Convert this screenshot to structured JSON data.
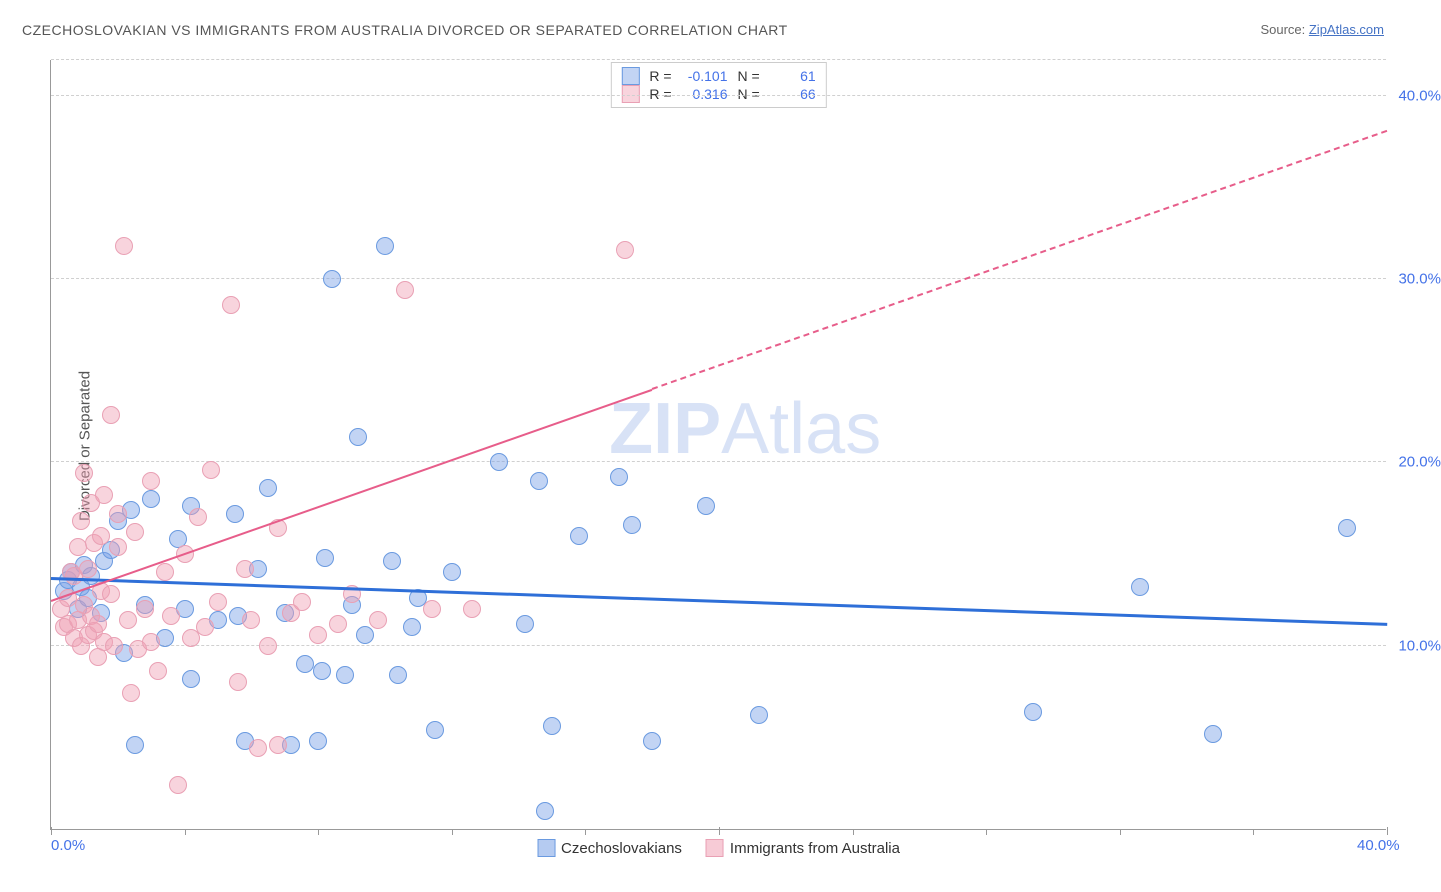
{
  "title": "CZECHOSLOVAKIAN VS IMMIGRANTS FROM AUSTRALIA DIVORCED OR SEPARATED CORRELATION CHART",
  "source_prefix": "Source: ",
  "source_link": "ZipAtlas.com",
  "ylabel": "Divorced or Separated",
  "watermark_a": "ZIP",
  "watermark_b": "Atlas",
  "chart": {
    "type": "scatter",
    "xlim": [
      0,
      40
    ],
    "ylim": [
      0,
      42
    ],
    "x_ticks": [
      0,
      20,
      40
    ],
    "x_tick_labels": [
      "0.0%",
      "",
      "40.0%"
    ],
    "x_minor_ticks": [
      4,
      8,
      12,
      16,
      24,
      28,
      32,
      36
    ],
    "y_grid": [
      10,
      20,
      30,
      40
    ],
    "y_grid_labels": [
      "10.0%",
      "20.0%",
      "30.0%",
      "40.0%"
    ],
    "background_color": "#ffffff",
    "grid_color": "#d0d0d0",
    "axis_color": "#999999",
    "tick_label_color": "#4472e8",
    "label_fontsize": 15,
    "title_fontsize": 14,
    "title_color": "#555555",
    "series": [
      {
        "name": "Czechoslovakians",
        "fill": "rgba(120,160,230,0.45)",
        "stroke": "#6a9ae0",
        "marker_radius": 9,
        "R": "-0.101",
        "N": "61",
        "trend": {
          "x1": 0,
          "y1": 13.6,
          "x2": 40,
          "y2": 11.1,
          "color": "#2e6fd8",
          "width": 3,
          "dash_after": null
        },
        "points": [
          [
            0.4,
            13.0
          ],
          [
            0.5,
            13.6
          ],
          [
            0.6,
            14.0
          ],
          [
            0.8,
            12.0
          ],
          [
            0.9,
            13.2
          ],
          [
            1.0,
            14.4
          ],
          [
            1.1,
            12.6
          ],
          [
            1.2,
            13.8
          ],
          [
            1.5,
            11.8
          ],
          [
            1.6,
            14.6
          ],
          [
            1.8,
            15.2
          ],
          [
            2.0,
            16.8
          ],
          [
            2.2,
            9.6
          ],
          [
            2.4,
            17.4
          ],
          [
            2.5,
            4.6
          ],
          [
            2.8,
            12.2
          ],
          [
            3.0,
            18.0
          ],
          [
            3.4,
            10.4
          ],
          [
            3.8,
            15.8
          ],
          [
            4.0,
            12.0
          ],
          [
            4.2,
            17.6
          ],
          [
            4.2,
            8.2
          ],
          [
            5.0,
            11.4
          ],
          [
            5.5,
            17.2
          ],
          [
            5.6,
            11.6
          ],
          [
            5.8,
            4.8
          ],
          [
            6.2,
            14.2
          ],
          [
            6.5,
            18.6
          ],
          [
            7.0,
            11.8
          ],
          [
            7.2,
            4.6
          ],
          [
            7.6,
            9.0
          ],
          [
            8.0,
            4.8
          ],
          [
            8.1,
            8.6
          ],
          [
            8.2,
            14.8
          ],
          [
            8.4,
            30.0
          ],
          [
            8.8,
            8.4
          ],
          [
            9.0,
            12.2
          ],
          [
            9.2,
            21.4
          ],
          [
            9.4,
            10.6
          ],
          [
            10.0,
            31.8
          ],
          [
            10.2,
            14.6
          ],
          [
            10.4,
            8.4
          ],
          [
            10.8,
            11.0
          ],
          [
            11.0,
            12.6
          ],
          [
            11.5,
            5.4
          ],
          [
            12.0,
            14.0
          ],
          [
            13.4,
            20.0
          ],
          [
            14.2,
            11.2
          ],
          [
            14.6,
            19.0
          ],
          [
            14.8,
            1.0
          ],
          [
            15.0,
            5.6
          ],
          [
            15.8,
            16.0
          ],
          [
            17.0,
            19.2
          ],
          [
            17.4,
            16.6
          ],
          [
            18.0,
            4.8
          ],
          [
            19.6,
            17.6
          ],
          [
            21.2,
            6.2
          ],
          [
            29.4,
            6.4
          ],
          [
            32.6,
            13.2
          ],
          [
            34.8,
            5.2
          ],
          [
            38.8,
            16.4
          ]
        ]
      },
      {
        "name": "Immigrants from Australia",
        "fill": "rgba(240,160,180,0.45)",
        "stroke": "#e9a0b4",
        "marker_radius": 9,
        "R": "0.316",
        "N": "66",
        "trend": {
          "x1": 0,
          "y1": 12.4,
          "x2": 40,
          "y2": 38.0,
          "color": "#e75d8a",
          "width": 2,
          "dash_after": 18
        },
        "points": [
          [
            0.3,
            12.0
          ],
          [
            0.4,
            11.0
          ],
          [
            0.5,
            12.6
          ],
          [
            0.5,
            11.2
          ],
          [
            0.6,
            14.0
          ],
          [
            0.7,
            10.4
          ],
          [
            0.7,
            13.8
          ],
          [
            0.8,
            15.4
          ],
          [
            0.8,
            11.4
          ],
          [
            0.9,
            10.0
          ],
          [
            0.9,
            16.8
          ],
          [
            1.0,
            19.4
          ],
          [
            1.0,
            12.2
          ],
          [
            1.1,
            10.6
          ],
          [
            1.1,
            14.2
          ],
          [
            1.2,
            11.6
          ],
          [
            1.2,
            17.8
          ],
          [
            1.3,
            10.8
          ],
          [
            1.3,
            15.6
          ],
          [
            1.4,
            11.2
          ],
          [
            1.4,
            9.4
          ],
          [
            1.5,
            13.0
          ],
          [
            1.5,
            16.0
          ],
          [
            1.6,
            10.2
          ],
          [
            1.6,
            18.2
          ],
          [
            1.8,
            22.6
          ],
          [
            1.8,
            12.8
          ],
          [
            1.9,
            10.0
          ],
          [
            2.0,
            15.4
          ],
          [
            2.0,
            17.2
          ],
          [
            2.2,
            31.8
          ],
          [
            2.3,
            11.4
          ],
          [
            2.4,
            7.4
          ],
          [
            2.5,
            16.2
          ],
          [
            2.6,
            9.8
          ],
          [
            2.8,
            12.0
          ],
          [
            3.0,
            10.2
          ],
          [
            3.0,
            19.0
          ],
          [
            3.2,
            8.6
          ],
          [
            3.4,
            14.0
          ],
          [
            3.6,
            11.6
          ],
          [
            3.8,
            2.4
          ],
          [
            4.0,
            15.0
          ],
          [
            4.2,
            10.4
          ],
          [
            4.4,
            17.0
          ],
          [
            4.6,
            11.0
          ],
          [
            4.8,
            19.6
          ],
          [
            5.0,
            12.4
          ],
          [
            5.4,
            28.6
          ],
          [
            5.6,
            8.0
          ],
          [
            5.8,
            14.2
          ],
          [
            6.0,
            11.4
          ],
          [
            6.2,
            4.4
          ],
          [
            6.5,
            10.0
          ],
          [
            6.8,
            16.4
          ],
          [
            6.8,
            4.6
          ],
          [
            7.2,
            11.8
          ],
          [
            7.5,
            12.4
          ],
          [
            8.0,
            10.6
          ],
          [
            8.6,
            11.2
          ],
          [
            9.0,
            12.8
          ],
          [
            9.8,
            11.4
          ],
          [
            10.6,
            29.4
          ],
          [
            11.4,
            12.0
          ],
          [
            12.6,
            12.0
          ],
          [
            17.2,
            31.6
          ]
        ]
      }
    ],
    "legend_bottom": [
      {
        "label": "Czechoslovakians",
        "fill": "rgba(120,160,230,0.55)",
        "stroke": "#6a9ae0"
      },
      {
        "label": "Immigrants from Australia",
        "fill": "rgba(240,160,180,0.55)",
        "stroke": "#e9a0b4"
      }
    ]
  }
}
